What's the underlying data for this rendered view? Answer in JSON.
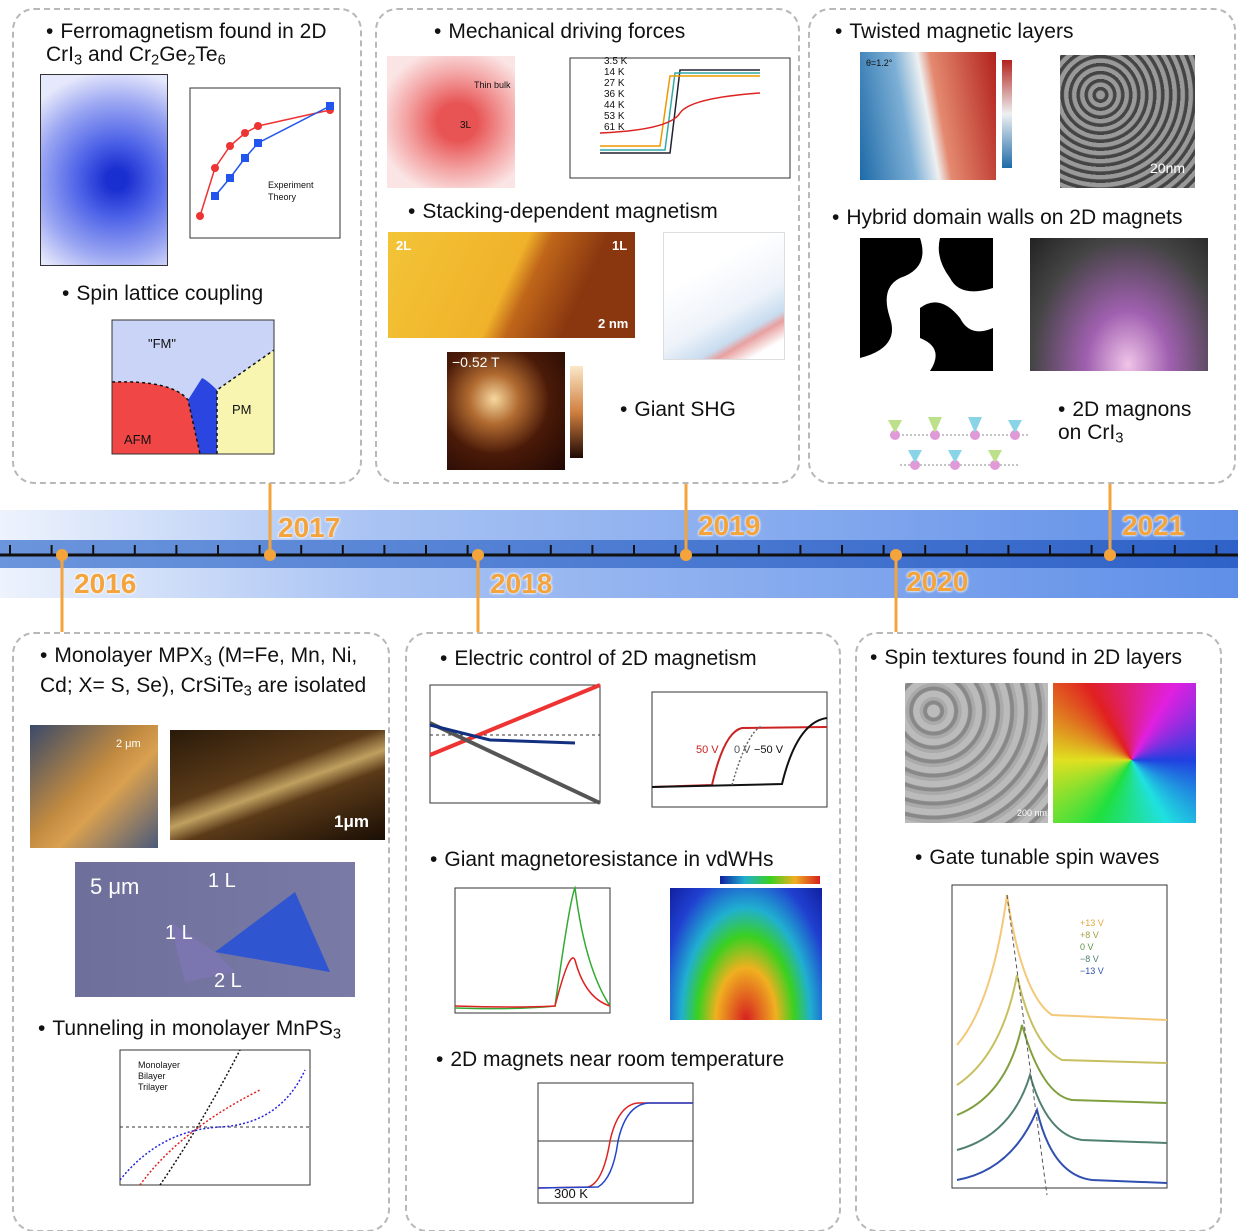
{
  "timeline": {
    "years": [
      "2016",
      "2017",
      "2018",
      "2019",
      "2020",
      "2021"
    ]
  },
  "panels": [
    {
      "headings": [
        "Ferromagnetism found in 2D CrI3 and Cr2Ge2Te6",
        "Spin lattice coupling"
      ],
      "labels": [
        "Experiment",
        "Theory",
        "\"FM\"",
        "AFM",
        "PM"
      ]
    },
    {
      "headings": [
        "Mechanical driving forces",
        "Stacking-dependent magnetism",
        "Giant SHG"
      ],
      "labels": [
        "2L",
        "1L",
        "2 nm",
        "−0.52 T",
        "Thin bulk",
        "3L",
        "3.5 K",
        "14 K",
        "27 K",
        "36 K",
        "44 K",
        "53 K",
        "61 K"
      ]
    },
    {
      "headings": [
        "Twisted magnetic layers",
        "Hybrid domain walls on 2D magnets",
        "2D magnons on CrI3"
      ],
      "labels": [
        "20nm",
        "θ=1.2°"
      ]
    },
    {
      "headings": [
        "Monolayer MPX3 (M=Fe, Mn, Ni, Cd; X= S, Se), CrSiTe3 are isolated",
        "Tunneling in monolayer MnPS3"
      ],
      "labels": [
        "2 μm",
        "1μm",
        "5 μm",
        "1 L",
        "1 L",
        "2 L",
        "Monolayer",
        "Bilayer",
        "Trilayer"
      ]
    },
    {
      "headings": [
        "Electric control of 2D magnetism",
        "Giant magnetoresistance in vdWHs",
        "2D magnets near room temperature"
      ],
      "labels": [
        "50 V",
        "0 V",
        "−50 V",
        "300 K"
      ]
    },
    {
      "headings": [
        "Spin textures found in 2D layers",
        "Gate tunable spin waves"
      ],
      "labels": [
        "200 nm",
        "+13 V",
        "+8 V",
        "0 V",
        "−8 V",
        "−13 V"
      ]
    }
  ]
}
